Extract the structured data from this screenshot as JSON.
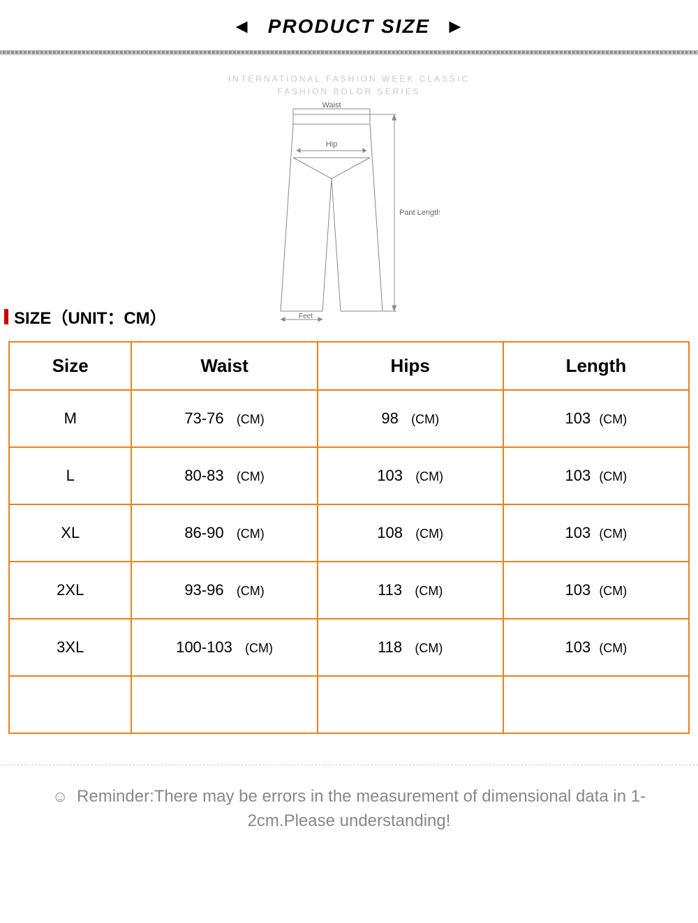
{
  "header": {
    "arrow_left": "◄",
    "title": "PRODUCT SIZE",
    "arrow_right": "►"
  },
  "subhead": {
    "line1": "INTERNATIONAL FASHION WEEK CLASSIC",
    "line2": "FASHION BOLOR SERIES"
  },
  "diagram": {
    "waist": "Waist",
    "hip": "Hip",
    "pant_length": "Pant Length",
    "feet": "Feet"
  },
  "size_unit_label": "SIZE（UNIT：CM）",
  "table": {
    "columns": [
      "Size",
      "Waist",
      "Hips",
      "Length"
    ],
    "unit": "(CM)",
    "rows": [
      {
        "size": "M",
        "waist": "73-76",
        "hips": "98",
        "length": "103"
      },
      {
        "size": "L",
        "waist": "80-83",
        "hips": "103",
        "length": "103"
      },
      {
        "size": "XL",
        "waist": "86-90",
        "hips": "108",
        "length": "103"
      },
      {
        "size": "2XL",
        "waist": "93-96",
        "hips": "113",
        "length": "103"
      },
      {
        "size": "3XL",
        "waist": "100-103",
        "hips": "118",
        "length": "103"
      }
    ],
    "blank_rows": 1,
    "border_color": "#ef7f1a"
  },
  "reminder": {
    "icon": "☺",
    "text": "Reminder:There may be errors in the measurement of dimensional data in 1-2cm.Please understanding!"
  }
}
